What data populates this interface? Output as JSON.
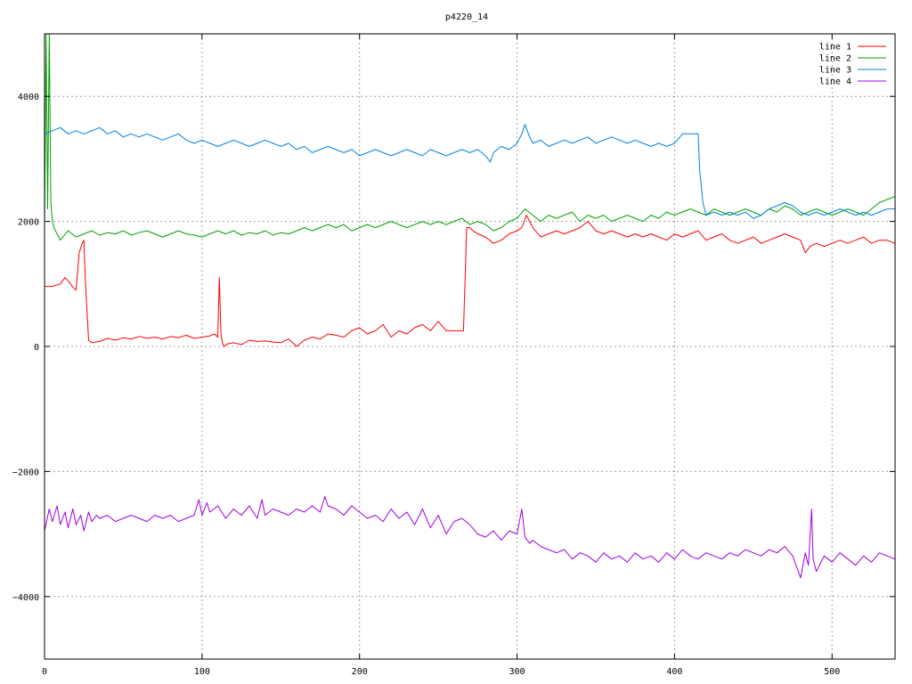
{
  "chart_data": {
    "type": "line",
    "title": "p4220_14",
    "xlabel": "",
    "ylabel": "",
    "xlim": [
      0,
      540
    ],
    "ylim": [
      -5000,
      5000
    ],
    "xticks": [
      0,
      100,
      200,
      300,
      400,
      500
    ],
    "yticks": [
      -4000,
      -2000,
      0,
      2000,
      4000
    ],
    "grid": true,
    "legend_position": "top-right",
    "series": [
      {
        "name": "line 1",
        "color": "#ff0000",
        "x": [
          0,
          5,
          10,
          13,
          15,
          18,
          20,
          22,
          24,
          25,
          26,
          28,
          30,
          35,
          40,
          45,
          50,
          55,
          60,
          65,
          70,
          75,
          80,
          85,
          90,
          95,
          100,
          105,
          108,
          110,
          111,
          112,
          113,
          114,
          116,
          120,
          125,
          130,
          135,
          140,
          145,
          150,
          155,
          160,
          165,
          170,
          175,
          180,
          185,
          190,
          195,
          200,
          205,
          210,
          215,
          220,
          225,
          230,
          235,
          240,
          245,
          250,
          255,
          258,
          260,
          263,
          266,
          268,
          270,
          272,
          275,
          280,
          285,
          290,
          295,
          300,
          303,
          306,
          310,
          315,
          320,
          325,
          330,
          335,
          340,
          345,
          350,
          355,
          360,
          365,
          370,
          375,
          380,
          385,
          390,
          395,
          400,
          405,
          410,
          415,
          420,
          425,
          430,
          435,
          440,
          445,
          450,
          455,
          460,
          465,
          470,
          475,
          480,
          483,
          486,
          490,
          495,
          500,
          505,
          510,
          515,
          520,
          525,
          530,
          535,
          540
        ],
        "values": [
          960,
          960,
          1000,
          1100,
          1050,
          950,
          900,
          1500,
          1650,
          1700,
          1000,
          100,
          60,
          80,
          130,
          100,
          140,
          120,
          160,
          130,
          150,
          120,
          160,
          140,
          180,
          130,
          150,
          170,
          200,
          150,
          1100,
          200,
          50,
          0,
          40,
          60,
          30,
          100,
          80,
          90,
          70,
          60,
          120,
          0,
          100,
          150,
          120,
          200,
          180,
          150,
          250,
          300,
          200,
          250,
          350,
          150,
          250,
          200,
          300,
          350,
          250,
          400,
          250,
          250,
          250,
          250,
          250,
          1900,
          1900,
          1850,
          1800,
          1750,
          1650,
          1700,
          1800,
          1850,
          1900,
          2100,
          1900,
          1750,
          1800,
          1850,
          1800,
          1850,
          1900,
          2000,
          1850,
          1800,
          1850,
          1800,
          1750,
          1800,
          1750,
          1800,
          1750,
          1700,
          1800,
          1750,
          1800,
          1850,
          1700,
          1750,
          1800,
          1700,
          1650,
          1700,
          1750,
          1650,
          1700,
          1750,
          1800,
          1750,
          1700,
          1500,
          1600,
          1650,
          1600,
          1650,
          1700,
          1650,
          1700,
          1750,
          1650,
          1700,
          1700,
          1650
        ]
      },
      {
        "name": "line 2",
        "color": "#00a000",
        "x": [
          0,
          1,
          2,
          3,
          4,
          5,
          6,
          8,
          10,
          15,
          20,
          25,
          30,
          35,
          40,
          45,
          50,
          55,
          60,
          65,
          70,
          75,
          80,
          85,
          90,
          95,
          100,
          105,
          110,
          115,
          120,
          125,
          130,
          135,
          140,
          145,
          150,
          155,
          160,
          165,
          170,
          175,
          180,
          185,
          190,
          195,
          200,
          205,
          210,
          215,
          220,
          225,
          230,
          235,
          240,
          245,
          250,
          255,
          260,
          265,
          270,
          275,
          280,
          285,
          290,
          295,
          300,
          305,
          310,
          315,
          320,
          325,
          330,
          335,
          340,
          345,
          350,
          355,
          360,
          365,
          370,
          375,
          380,
          385,
          390,
          395,
          400,
          405,
          410,
          415,
          420,
          425,
          430,
          435,
          440,
          445,
          450,
          455,
          460,
          465,
          470,
          475,
          480,
          485,
          490,
          495,
          500,
          505,
          510,
          515,
          520,
          525,
          530,
          535,
          540
        ],
        "values": [
          1900,
          5000,
          2200,
          5000,
          2300,
          2000,
          1900,
          1800,
          1700,
          1850,
          1750,
          1800,
          1850,
          1780,
          1820,
          1800,
          1850,
          1780,
          1820,
          1850,
          1800,
          1750,
          1800,
          1850,
          1800,
          1780,
          1750,
          1800,
          1850,
          1800,
          1850,
          1780,
          1820,
          1800,
          1850,
          1780,
          1820,
          1800,
          1850,
          1900,
          1850,
          1900,
          1950,
          1900,
          1950,
          1850,
          1900,
          1950,
          1900,
          1950,
          2000,
          1950,
          1900,
          1950,
          2000,
          1950,
          2000,
          1950,
          2000,
          2050,
          1950,
          2000,
          1950,
          1850,
          1900,
          2000,
          2050,
          2200,
          2100,
          2000,
          2100,
          2050,
          2100,
          2150,
          2000,
          2100,
          2050,
          2100,
          2000,
          2050,
          2100,
          2050,
          2000,
          2100,
          2050,
          2150,
          2100,
          2150,
          2200,
          2150,
          2100,
          2200,
          2150,
          2100,
          2150,
          2200,
          2150,
          2100,
          2200,
          2150,
          2250,
          2200,
          2100,
          2150,
          2200,
          2150,
          2100,
          2150,
          2200,
          2150,
          2100,
          2200,
          2300,
          2350,
          2400
        ]
      },
      {
        "name": "line 3",
        "color": "#0080e0",
        "x": [
          0,
          5,
          10,
          15,
          20,
          25,
          30,
          35,
          40,
          45,
          50,
          55,
          60,
          65,
          70,
          75,
          80,
          85,
          90,
          95,
          100,
          105,
          110,
          115,
          120,
          125,
          130,
          135,
          140,
          145,
          150,
          155,
          160,
          165,
          170,
          175,
          180,
          185,
          190,
          195,
          200,
          205,
          210,
          215,
          220,
          225,
          230,
          235,
          240,
          245,
          250,
          255,
          260,
          265,
          270,
          275,
          280,
          283,
          285,
          290,
          295,
          300,
          303,
          305,
          308,
          310,
          315,
          320,
          325,
          330,
          335,
          340,
          345,
          350,
          355,
          360,
          365,
          370,
          375,
          380,
          385,
          390,
          395,
          400,
          405,
          410,
          413,
          415,
          416,
          418,
          420,
          425,
          430,
          435,
          440,
          445,
          450,
          455,
          460,
          465,
          470,
          475,
          480,
          485,
          490,
          495,
          500,
          505,
          510,
          515,
          520,
          525,
          530,
          535,
          540
        ],
        "values": [
          3400,
          3450,
          3500,
          3400,
          3450,
          3400,
          3450,
          3500,
          3400,
          3450,
          3350,
          3400,
          3350,
          3400,
          3350,
          3300,
          3350,
          3400,
          3300,
          3250,
          3300,
          3250,
          3200,
          3250,
          3300,
          3250,
          3200,
          3250,
          3300,
          3250,
          3200,
          3250,
          3150,
          3200,
          3100,
          3150,
          3200,
          3150,
          3100,
          3150,
          3050,
          3100,
          3150,
          3100,
          3050,
          3100,
          3150,
          3100,
          3050,
          3150,
          3100,
          3050,
          3100,
          3150,
          3100,
          3150,
          3050,
          2950,
          3100,
          3200,
          3150,
          3250,
          3400,
          3550,
          3350,
          3250,
          3300,
          3200,
          3250,
          3300,
          3250,
          3300,
          3350,
          3250,
          3300,
          3350,
          3300,
          3250,
          3300,
          3250,
          3200,
          3250,
          3200,
          3250,
          3400,
          3400,
          3400,
          3400,
          2800,
          2300,
          2100,
          2150,
          2100,
          2150,
          2100,
          2150,
          2050,
          2100,
          2200,
          2250,
          2300,
          2250,
          2150,
          2100,
          2150,
          2100,
          2150,
          2200,
          2150,
          2100,
          2150,
          2100,
          2150,
          2200,
          2200
        ]
      },
      {
        "name": "line 4",
        "color": "#a000e0",
        "x": [
          0,
          3,
          5,
          8,
          10,
          13,
          15,
          18,
          20,
          23,
          25,
          28,
          30,
          33,
          35,
          40,
          45,
          50,
          55,
          60,
          65,
          70,
          75,
          80,
          85,
          90,
          95,
          98,
          100,
          103,
          105,
          110,
          115,
          120,
          125,
          130,
          135,
          138,
          140,
          145,
          150,
          155,
          160,
          165,
          170,
          175,
          178,
          180,
          185,
          190,
          195,
          200,
          205,
          210,
          215,
          220,
          225,
          230,
          235,
          240,
          245,
          250,
          255,
          260,
          265,
          270,
          275,
          280,
          285,
          290,
          295,
          300,
          303,
          305,
          308,
          310,
          315,
          320,
          325,
          330,
          335,
          340,
          345,
          350,
          355,
          360,
          365,
          370,
          375,
          380,
          385,
          390,
          395,
          400,
          405,
          410,
          415,
          420,
          425,
          430,
          435,
          440,
          445,
          450,
          455,
          460,
          465,
          470,
          475,
          480,
          483,
          485,
          487,
          488,
          490,
          495,
          500,
          505,
          510,
          515,
          520,
          525,
          530,
          535,
          540
        ],
        "values": [
          -2950,
          -2600,
          -2800,
          -2550,
          -2850,
          -2650,
          -2900,
          -2600,
          -2850,
          -2700,
          -2950,
          -2650,
          -2800,
          -2700,
          -2750,
          -2700,
          -2800,
          -2750,
          -2700,
          -2750,
          -2800,
          -2700,
          -2750,
          -2700,
          -2800,
          -2750,
          -2700,
          -2450,
          -2700,
          -2500,
          -2650,
          -2550,
          -2750,
          -2600,
          -2700,
          -2550,
          -2750,
          -2450,
          -2700,
          -2600,
          -2650,
          -2700,
          -2600,
          -2650,
          -2550,
          -2650,
          -2400,
          -2550,
          -2600,
          -2700,
          -2550,
          -2650,
          -2750,
          -2700,
          -2800,
          -2600,
          -2750,
          -2650,
          -2850,
          -2600,
          -2900,
          -2700,
          -3000,
          -2800,
          -2750,
          -2850,
          -3000,
          -3050,
          -2950,
          -3100,
          -2950,
          -3000,
          -2600,
          -3050,
          -3150,
          -3100,
          -3200,
          -3250,
          -3300,
          -3250,
          -3400,
          -3300,
          -3350,
          -3450,
          -3300,
          -3400,
          -3350,
          -3450,
          -3300,
          -3400,
          -3350,
          -3450,
          -3300,
          -3400,
          -3250,
          -3350,
          -3400,
          -3300,
          -3350,
          -3400,
          -3300,
          -3350,
          -3250,
          -3300,
          -3350,
          -3250,
          -3300,
          -3200,
          -3350,
          -3700,
          -3300,
          -3500,
          -2600,
          -3400,
          -3600,
          -3350,
          -3450,
          -3300,
          -3400,
          -3500,
          -3350,
          -3450,
          -3300,
          -3350,
          -3400
        ]
      }
    ]
  }
}
